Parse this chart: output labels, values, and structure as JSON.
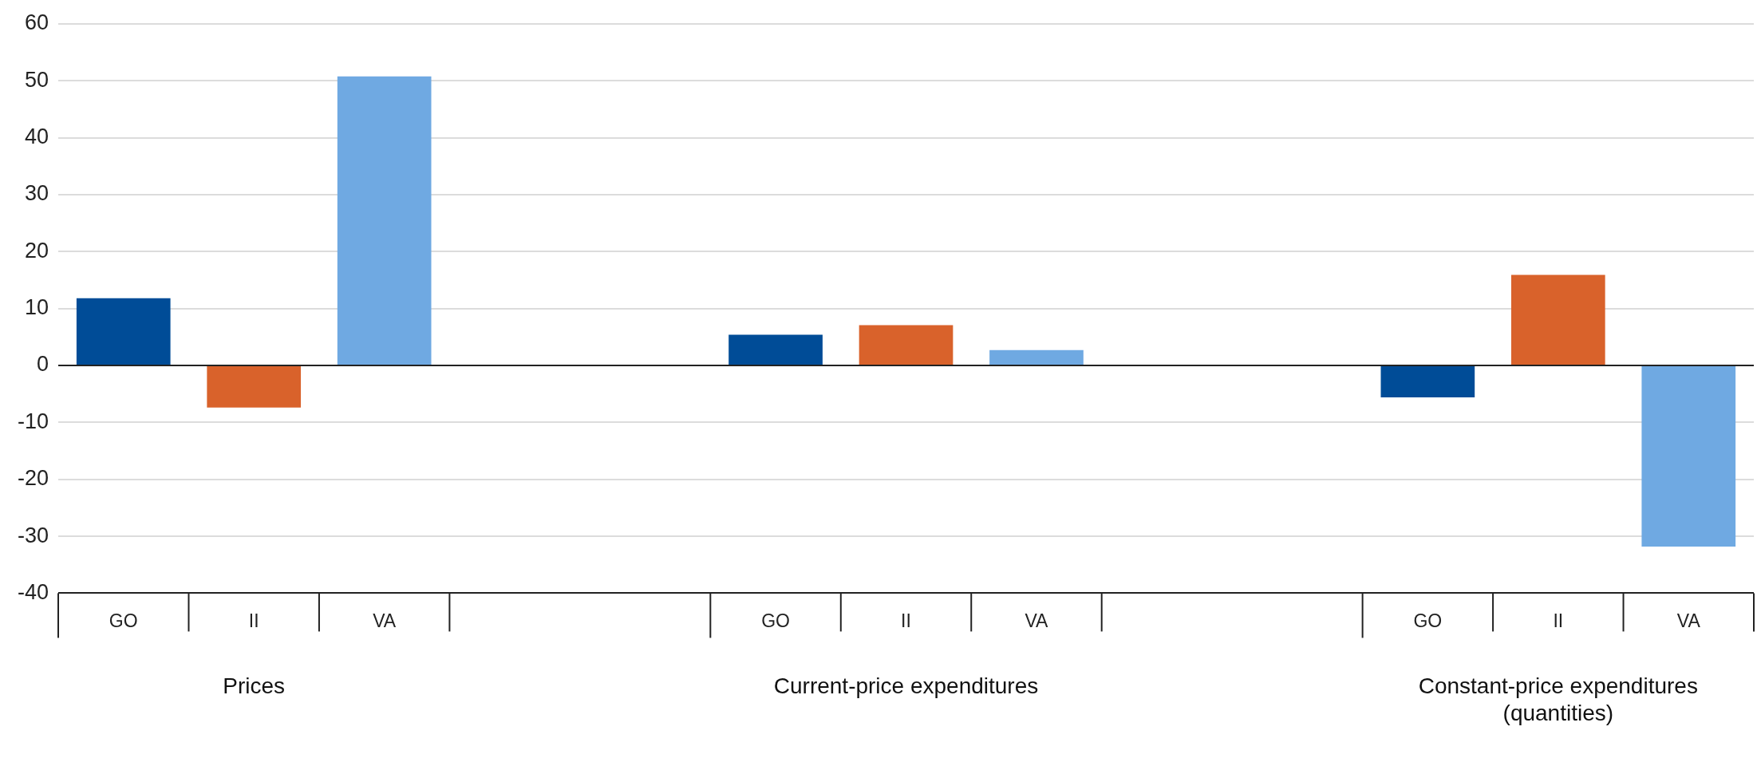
{
  "chart_data": {
    "type": "bar",
    "categories": [
      "GO",
      "II",
      "VA",
      null,
      null,
      "GO",
      "II",
      "VA",
      null,
      null,
      "GO",
      "II",
      "VA"
    ],
    "values": [
      11.8,
      -7.4,
      50.8,
      null,
      null,
      5.4,
      7.1,
      2.7,
      null,
      null,
      -5.6,
      15.9,
      -31.8
    ],
    "colors": [
      "#004c97",
      "#d9622b",
      "#6fa9e2",
      null,
      null,
      "#004c97",
      "#d9622b",
      "#6fa9e2",
      null,
      null,
      "#004c97",
      "#d9622b",
      "#6fa9e2"
    ],
    "ylim": [
      -40,
      60
    ],
    "yticks": [
      -40,
      -30,
      -20,
      -10,
      0,
      10,
      20,
      30,
      40,
      50,
      60
    ],
    "grid": "y",
    "legend": false,
    "annotations": [
      "Prices",
      "Current-price expenditures",
      "Constant-price expenditures\n(quantities)"
    ]
  }
}
